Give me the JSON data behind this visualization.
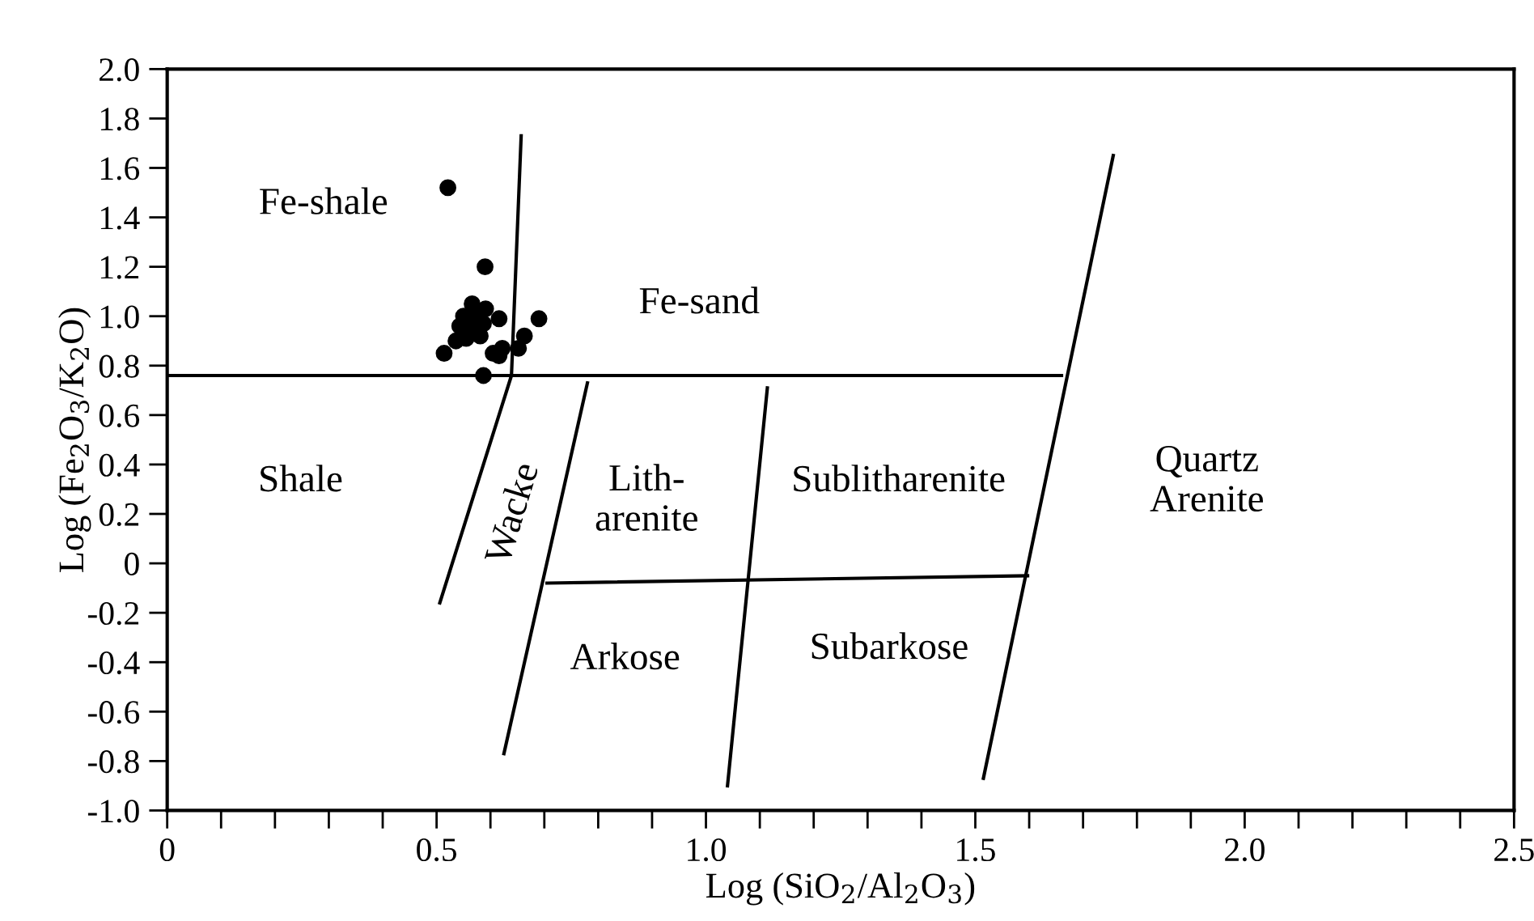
{
  "chart_data": {
    "type": "scatter",
    "xlabel": "Log (SiO$_{2}$/Al$_{2}$O$_{3}$)",
    "ylabel": "Log (Fe$_{2}$O$_{3}$/K$_{2}$O)",
    "xlim": [
      0,
      2.5
    ],
    "ylim": [
      -1.0,
      2.0
    ],
    "xticks": [
      0,
      {
        "value": 0.1,
        "label": null
      },
      {
        "value": 0.2,
        "label": null
      },
      {
        "value": 0.3,
        "label": null
      },
      {
        "value": 0.4,
        "label": null
      },
      0.5,
      {
        "value": 0.6,
        "label": null
      },
      {
        "value": 0.7,
        "label": null
      },
      {
        "value": 0.8,
        "label": null
      },
      {
        "value": 0.9,
        "label": null
      },
      {
        "value": 1.0,
        "label": "1.0"
      },
      {
        "value": 1.1,
        "label": null
      },
      {
        "value": 1.2,
        "label": null
      },
      {
        "value": 1.3,
        "label": null
      },
      {
        "value": 1.4,
        "label": null
      },
      1.5,
      {
        "value": 1.6,
        "label": null
      },
      {
        "value": 1.7,
        "label": null
      },
      {
        "value": 1.8,
        "label": null
      },
      {
        "value": 1.9,
        "label": null
      },
      {
        "value": 2.0,
        "label": "2.0"
      },
      {
        "value": 2.1,
        "label": null
      },
      {
        "value": 2.2,
        "label": null
      },
      {
        "value": 2.3,
        "label": null
      },
      {
        "value": 2.4,
        "label": null
      },
      2.5
    ],
    "yticks": [
      {
        "value": -1.0,
        "label": "-1.0"
      },
      {
        "value": -0.8,
        "label": "-0.8"
      },
      {
        "value": -0.6,
        "label": "-0.6"
      },
      {
        "value": -0.4,
        "label": "-0.4"
      },
      {
        "value": -0.2,
        "label": "-0.2"
      },
      0,
      0.2,
      0.4,
      0.6,
      0.8,
      {
        "value": 1.0,
        "label": "1.0"
      },
      1.2,
      1.4,
      1.6,
      1.8,
      {
        "value": 2.0,
        "label": "2.0"
      }
    ],
    "grid": false,
    "legend": false,
    "series": [
      {
        "marker": "circle",
        "color": "#000000",
        "x": [
          0.521,
          0.59,
          0.566,
          0.55,
          0.591,
          0.573,
          0.616,
          0.69,
          0.543,
          0.587,
          0.563,
          0.581,
          0.555,
          0.536,
          0.663,
          0.652,
          0.514,
          0.605,
          0.622,
          0.616,
          0.587
        ],
        "values": [
          1.52,
          1.2,
          1.05,
          1.0,
          1.03,
          1.0,
          0.99,
          0.99,
          0.96,
          0.97,
          0.96,
          0.92,
          0.91,
          0.9,
          0.92,
          0.87,
          0.85,
          0.85,
          0.87,
          0.84,
          0.76
        ]
      },
      {
        "type": "line",
        "color": "#000000",
        "x": [
          0,
          1.66
        ],
        "values": [
          0.76,
          0.76
        ]
      },
      {
        "type": "line",
        "color": "#000000",
        "x": [
          0.657,
          0.639,
          0.506
        ],
        "values": [
          1.73,
          0.76,
          -0.16
        ]
      },
      {
        "type": "line",
        "color": "#000000",
        "x": [
          0.78,
          0.625
        ],
        "values": [
          0.73,
          -0.77
        ]
      },
      {
        "type": "line",
        "color": "#000000",
        "x": [
          1.114,
          1.04
        ],
        "values": [
          0.71,
          -0.9
        ]
      },
      {
        "type": "line",
        "color": "#000000",
        "x": [
          1.756,
          1.515
        ],
        "values": [
          1.65,
          -0.87
        ]
      },
      {
        "type": "line",
        "color": "#000000",
        "x": [
          0.705,
          1.597
        ],
        "values": [
          -0.08,
          -0.05
        ]
      }
    ],
    "annotations": [
      "Fe-shale",
      "Fe-sand",
      "Shale",
      "Wacke",
      "Lith-\narenite",
      "Sublitharenite",
      "Quartz\nArenite",
      "Arkose",
      "Subarkose"
    ]
  }
}
